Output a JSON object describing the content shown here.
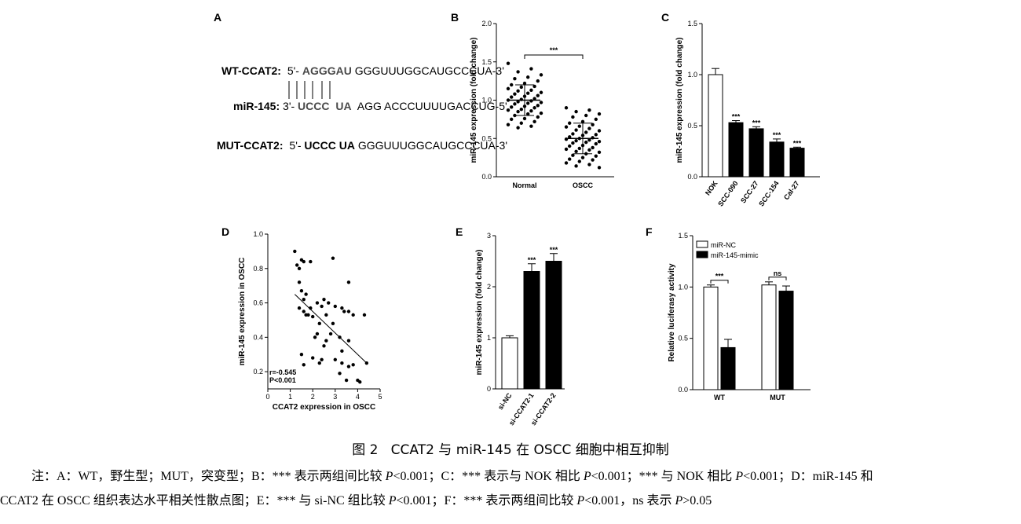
{
  "panels": {
    "A": {
      "letter": "A",
      "wt_label": "WT-CCAT2:",
      "wt_prefix": "5'-",
      "wt_highlight": "AGGGAU",
      "wt_rest": "GGGUUUGGCAUGCCCUA-3'",
      "mir_label": "miR-145:",
      "mir_prefix": "3'-",
      "mir_hl1": "UCCC",
      "mir_hl2": "UA",
      "mir_rest": "AGG ACCCUUUUGACCUG-5'",
      "mut_label": "MUT-CCAT2:",
      "mut_prefix": "5'-",
      "mut_hl": "UCCC UA",
      "mut_rest": "GGGUUUGGCAUGCCCUA-3'"
    },
    "B": {
      "letter": "B",
      "sig": "***"
    },
    "C": {
      "letter": "C"
    },
    "D": {
      "letter": "D",
      "r_text": "r=-0.545",
      "p_text": "P<0.001"
    },
    "E": {
      "letter": "E"
    },
    "F": {
      "letter": "F",
      "sig1": "***",
      "sig2": "ns"
    }
  },
  "chart_data": [
    {
      "panel": "B",
      "type": "scatter",
      "ylabel": "miR-145 expression (fold change)",
      "categories": [
        "Normal",
        "OSCC"
      ],
      "ylim": [
        0,
        2.0
      ],
      "yticks": [
        "0.0",
        "0.5",
        "1.0",
        "1.5",
        "2.0"
      ],
      "series": [
        {
          "category": "Normal",
          "mean": 1.0,
          "sd": 0.2,
          "values": [
            1.48,
            1.41,
            1.37,
            1.33,
            1.3,
            1.28,
            1.25,
            1.22,
            1.2,
            1.18,
            1.17,
            1.15,
            1.13,
            1.12,
            1.1,
            1.09,
            1.08,
            1.06,
            1.05,
            1.04,
            1.02,
            1.01,
            1.0,
            0.99,
            0.98,
            0.97,
            0.96,
            0.95,
            0.93,
            0.92,
            0.91,
            0.9,
            0.88,
            0.87,
            0.86,
            0.85,
            0.83,
            0.82,
            0.8,
            0.78,
            0.76,
            0.75,
            0.72,
            0.7,
            0.68,
            0.66,
            0.64
          ]
        },
        {
          "category": "OSCC",
          "mean": 0.5,
          "sd": 0.2,
          "values": [
            0.9,
            0.87,
            0.85,
            0.82,
            0.8,
            0.78,
            0.75,
            0.72,
            0.7,
            0.68,
            0.66,
            0.65,
            0.63,
            0.61,
            0.6,
            0.58,
            0.56,
            0.55,
            0.54,
            0.52,
            0.51,
            0.5,
            0.49,
            0.48,
            0.47,
            0.46,
            0.45,
            0.44,
            0.43,
            0.41,
            0.4,
            0.38,
            0.37,
            0.36,
            0.35,
            0.33,
            0.32,
            0.3,
            0.28,
            0.27,
            0.25,
            0.23,
            0.22,
            0.2,
            0.18,
            0.16,
            0.14,
            0.12
          ]
        }
      ]
    },
    {
      "panel": "C",
      "type": "bar",
      "ylabel": "miR-145 expression (fold change)",
      "categories": [
        "NOK",
        "SCC-090",
        "SCC-27",
        "SCC-154",
        "Cal-27"
      ],
      "values": [
        1.0,
        0.53,
        0.47,
        0.34,
        0.28
      ],
      "errors": [
        0.06,
        0.02,
        0.02,
        0.03,
        0.01
      ],
      "sig": [
        "",
        "***",
        "***",
        "***",
        "***"
      ],
      "fills": [
        "#ffffff",
        "#000000",
        "#000000",
        "#000000",
        "#000000"
      ],
      "ylim": [
        0,
        1.5
      ],
      "yticks": [
        "0.0",
        "0.5",
        "1.0",
        "1.5"
      ]
    },
    {
      "panel": "D",
      "type": "scatter",
      "xlabel": "CCAT2 expression in OSCC",
      "ylabel": "miR-145 expression in OSCC",
      "xlim": [
        0,
        5
      ],
      "ylim": [
        0.1,
        1.0
      ],
      "xticks": [
        "0",
        "1",
        "2",
        "3",
        "4",
        "5"
      ],
      "yticks": [
        "0.2",
        "0.4",
        "0.6",
        "0.8",
        "1.0"
      ],
      "regression": {
        "x0": 1.2,
        "y0": 0.65,
        "x1": 4.4,
        "y1": 0.25
      },
      "points": [
        [
          1.2,
          0.9
        ],
        [
          1.3,
          0.82
        ],
        [
          1.4,
          0.8
        ],
        [
          1.5,
          0.85
        ],
        [
          1.6,
          0.84
        ],
        [
          1.9,
          0.84
        ],
        [
          2.9,
          0.86
        ],
        [
          1.4,
          0.72
        ],
        [
          1.5,
          0.67
        ],
        [
          1.7,
          0.65
        ],
        [
          1.6,
          0.62
        ],
        [
          1.4,
          0.57
        ],
        [
          1.6,
          0.55
        ],
        [
          1.7,
          0.53
        ],
        [
          1.8,
          0.53
        ],
        [
          1.9,
          0.57
        ],
        [
          2.0,
          0.52
        ],
        [
          2.2,
          0.6
        ],
        [
          2.5,
          0.62
        ],
        [
          2.4,
          0.58
        ],
        [
          2.6,
          0.53
        ],
        [
          2.7,
          0.6
        ],
        [
          3.0,
          0.58
        ],
        [
          3.3,
          0.57
        ],
        [
          3.4,
          0.55
        ],
        [
          3.6,
          0.72
        ],
        [
          3.6,
          0.55
        ],
        [
          4.3,
          0.53
        ],
        [
          3.8,
          0.53
        ],
        [
          2.3,
          0.48
        ],
        [
          2.2,
          0.42
        ],
        [
          2.1,
          0.4
        ],
        [
          2.6,
          0.38
        ],
        [
          2.9,
          0.48
        ],
        [
          2.8,
          0.42
        ],
        [
          3.2,
          0.4
        ],
        [
          3.6,
          0.38
        ],
        [
          2.5,
          0.35
        ],
        [
          3.3,
          0.32
        ],
        [
          2.4,
          0.27
        ],
        [
          2.3,
          0.25
        ],
        [
          1.5,
          0.3
        ],
        [
          2.0,
          0.28
        ],
        [
          3.0,
          0.27
        ],
        [
          3.3,
          0.25
        ],
        [
          3.6,
          0.23
        ],
        [
          3.8,
          0.24
        ],
        [
          3.2,
          0.19
        ],
        [
          3.5,
          0.15
        ],
        [
          4.0,
          0.15
        ],
        [
          4.1,
          0.14
        ],
        [
          4.4,
          0.25
        ],
        [
          1.6,
          0.24
        ]
      ]
    },
    {
      "panel": "E",
      "type": "bar",
      "ylabel": "miR-145 expression (fold change)",
      "categories": [
        "si-NC",
        "si-CCAT2-1",
        "si-CCAT2-2"
      ],
      "values": [
        1.0,
        2.3,
        2.5
      ],
      "errors": [
        0.04,
        0.15,
        0.15
      ],
      "sig": [
        "",
        "***",
        "***"
      ],
      "fills": [
        "#ffffff",
        "#000000",
        "#000000"
      ],
      "ylim": [
        0,
        3
      ],
      "yticks": [
        "0",
        "1",
        "2",
        "3"
      ]
    },
    {
      "panel": "F",
      "type": "bar",
      "ylabel": "Relative luciferasy activity",
      "categories": [
        "WT",
        "MUT"
      ],
      "series": [
        {
          "name": "miR-NC",
          "values": [
            1.0,
            1.02
          ],
          "errors": [
            0.02,
            0.03
          ],
          "fill": "#ffffff"
        },
        {
          "name": "miR-145-mimic",
          "values": [
            0.41,
            0.96
          ],
          "errors": [
            0.08,
            0.05
          ],
          "fill": "#000000"
        }
      ],
      "legend": "top-left",
      "ylim": [
        0,
        1.5
      ],
      "yticks": [
        "0.0",
        "0.5",
        "1.0",
        "1.5"
      ]
    }
  ],
  "caption": {
    "fig_no": "图 2",
    "title": "CCAT2 与 miR-145 在 OSCC 细胞中相互抑制"
  },
  "note": {
    "line1_a": "注：A：WT，野生型；MUT，突变型；B：*** 表示两组间比较 ",
    "line1_p1": "P",
    "line1_b": "<0.001；C：*** 表示与 NOK 相比 ",
    "line1_p2": "P",
    "line1_c": "<0.001；*** 与 NOK 相比 ",
    "line1_p3": "P",
    "line1_d": "<0.001；D：miR-145 和",
    "line2_a": "CCAT2 在 OSCC 组织表达水平相关性散点图；E：*** 与 si-NC 组比较 ",
    "line2_p1": "P",
    "line2_b": "<0.001；F：*** 表示两组间比较 ",
    "line2_p2": "P",
    "line2_c": "<0.001，ns 表示 ",
    "line2_p3": "P",
    "line2_d": ">0.05"
  }
}
